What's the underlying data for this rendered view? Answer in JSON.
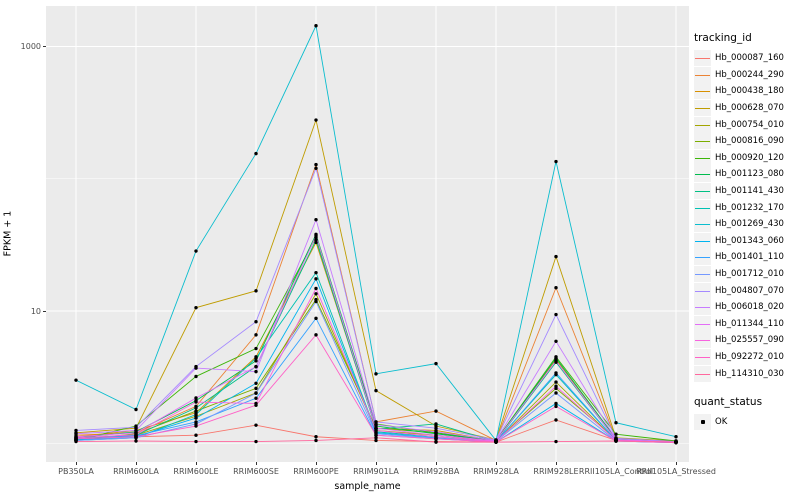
{
  "colors": {
    "panel_background": "#EBEBEB",
    "gridline": "#FFFFFF",
    "tick_text": "#4D4D4D",
    "axis_title_text": "#000000",
    "point": "#000000",
    "legend_key_background": "#F2F2F2"
  },
  "chart_data": {
    "type": "line",
    "title": "",
    "xlabel": "sample_name",
    "ylabel": "FPKM + 1",
    "y_scale": "log10",
    "ylim": [
      0.75,
      2000
    ],
    "grid": "on",
    "legend_position": "right",
    "y_ticks": [
      {
        "label": "1000",
        "value": 1000
      },
      {
        "label": "10",
        "value": 10
      }
    ],
    "y_minor_gridlines": [
      100,
      1
    ],
    "categories": [
      "PB350LA",
      "RRIM600LA",
      "RRIM600LE",
      "RRIM600SE",
      "RRIM600PE",
      "RRIM901LA",
      "RRIM928BA",
      "RRIM928LA",
      "RRIM928LE",
      "RRII105LA_Control",
      "RRII105LA_Stressed"
    ],
    "legend_title": "tracking_id",
    "series": [
      {
        "name": "Hb_000087_160",
        "color": "#F8766D",
        "values": [
          1.1,
          1.12,
          1.15,
          1.37,
          1.12,
          1.05,
          1.03,
          1.02,
          1.5,
          1.05,
          1.02
        ]
      },
      {
        "name": "Hb_000244_290",
        "color": "#EB8335",
        "values": [
          1.15,
          1.2,
          1.9,
          6.6,
          128,
          1.45,
          1.75,
          1.05,
          15.0,
          1.08,
          1.03
        ]
      },
      {
        "name": "Hb_000438_180",
        "color": "#D89000",
        "values": [
          1.12,
          1.25,
          1.7,
          4.5,
          33,
          1.3,
          1.25,
          1.04,
          4.3,
          1.06,
          1.02
        ]
      },
      {
        "name": "Hb_000628_070",
        "color": "#BF9C00",
        "values": [
          1.2,
          1.3,
          10.6,
          14.2,
          278,
          2.5,
          1.35,
          1.06,
          25.8,
          1.1,
          1.04
        ]
      },
      {
        "name": "Hb_000754_010",
        "color": "#A3A500",
        "values": [
          1.08,
          1.15,
          1.6,
          2.4,
          13.5,
          1.25,
          1.15,
          1.03,
          2.9,
          1.05,
          1.02
        ]
      },
      {
        "name": "Hb_000816_090",
        "color": "#7CAE00",
        "values": [
          1.06,
          1.18,
          1.75,
          2.6,
          12.2,
          1.3,
          1.2,
          1.04,
          2.6,
          1.07,
          1.03
        ]
      },
      {
        "name": "Hb_000920_120",
        "color": "#3DB508",
        "values": [
          1.05,
          1.35,
          3.2,
          5.2,
          36,
          1.4,
          1.2,
          1.05,
          4.5,
          1.17,
          1.04
        ]
      },
      {
        "name": "Hb_001123_080",
        "color": "#00BB4E",
        "values": [
          1.1,
          1.22,
          2.1,
          4.2,
          38,
          1.35,
          1.18,
          1.04,
          4.4,
          1.08,
          1.02
        ]
      },
      {
        "name": "Hb_001141_430",
        "color": "#00C084",
        "values": [
          1.07,
          1.15,
          1.85,
          3.8,
          34.5,
          1.28,
          1.4,
          1.03,
          4.1,
          1.06,
          1.02
        ]
      },
      {
        "name": "Hb_001232_170",
        "color": "#00C1B2",
        "values": [
          1.05,
          1.1,
          1.65,
          4.4,
          19.5,
          1.22,
          1.12,
          1.03,
          3.3,
          1.05,
          1.02
        ]
      },
      {
        "name": "Hb_001269_430",
        "color": "#0BBDCE",
        "values": [
          3.0,
          1.8,
          28.4,
          155,
          1435,
          3.35,
          4.0,
          1.05,
          135,
          1.43,
          1.12
        ]
      },
      {
        "name": "Hb_001343_060",
        "color": "#00B4EF",
        "values": [
          1.06,
          1.12,
          1.55,
          2.84,
          17.5,
          1.2,
          1.1,
          1.02,
          2.0,
          1.04,
          1.01
        ]
      },
      {
        "name": "Hb_001401_110",
        "color": "#35A2FF",
        "values": [
          1.08,
          1.14,
          1.45,
          2.19,
          8.8,
          1.15,
          1.08,
          1.02,
          3.4,
          1.05,
          1.02
        ]
      },
      {
        "name": "Hb_001712_010",
        "color": "#7599FF",
        "values": [
          1.05,
          1.1,
          1.4,
          2.39,
          11.8,
          1.18,
          1.09,
          1.03,
          2.4,
          1.04,
          1.01
        ]
      },
      {
        "name": "Hb_004807_070",
        "color": "#A58AFF",
        "values": [
          1.25,
          1.32,
          3.8,
          8.3,
          120,
          1.45,
          1.3,
          1.06,
          9.4,
          1.09,
          1.03
        ]
      },
      {
        "name": "Hb_006018_020",
        "color": "#C77CFF",
        "values": [
          1.18,
          1.25,
          3.7,
          3.48,
          49,
          1.38,
          1.22,
          1.05,
          5.9,
          1.07,
          1.02
        ]
      },
      {
        "name": "Hb_011344_110",
        "color": "#E36EF6",
        "values": [
          1.12,
          1.2,
          2.2,
          3.79,
          37,
          1.3,
          1.15,
          1.04,
          4.2,
          1.06,
          1.02
        ]
      },
      {
        "name": "Hb_025557_090",
        "color": "#F763DF",
        "values": [
          1.1,
          1.16,
          2.05,
          2.0,
          14.8,
          1.25,
          1.12,
          1.03,
          2.7,
          1.05,
          1.02
        ]
      },
      {
        "name": "Hb_092272_010",
        "color": "#FF61C7",
        "values": [
          1.08,
          1.12,
          1.35,
          1.94,
          6.6,
          1.15,
          1.08,
          1.02,
          1.9,
          1.04,
          1.01
        ]
      },
      {
        "name": "Hb_114310_030",
        "color": "#FF689E",
        "values": [
          1.03,
          1.04,
          1.03,
          1.03,
          1.05,
          1.1,
          1.02,
          1.02,
          1.03,
          1.04,
          1.02
        ]
      }
    ],
    "legend2": {
      "title": "quant_status",
      "items": [
        {
          "label": "OK"
        }
      ]
    }
  }
}
